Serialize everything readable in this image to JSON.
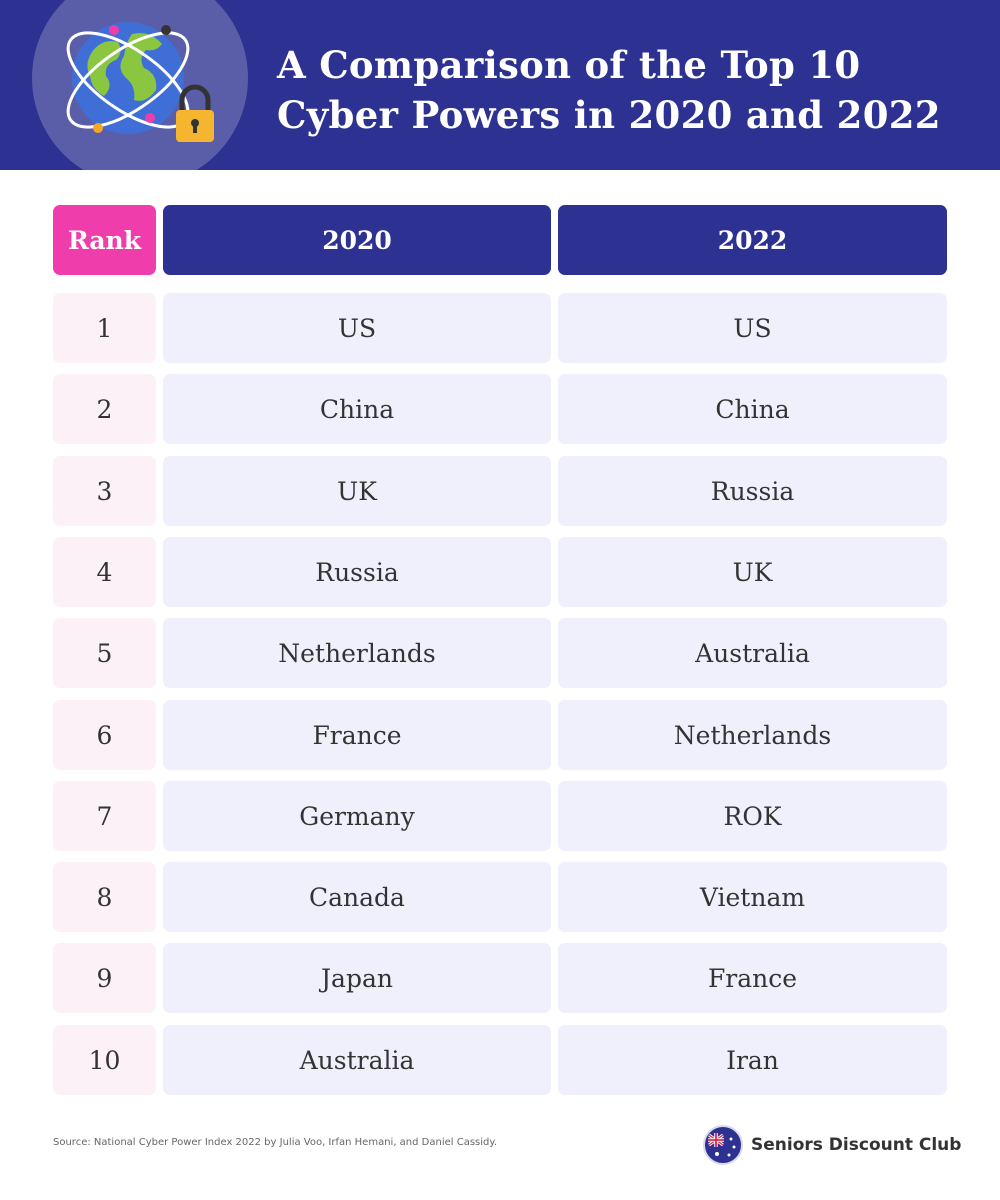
{
  "header": {
    "title_line1": "A Comparison of the Top 10",
    "title_line2": "Cyber Powers in 2020 and 2022",
    "icon": "globe-lock-icon",
    "background_color": "#2d3192"
  },
  "table": {
    "columns": {
      "rank": "Rank",
      "col_a": "2020",
      "col_b": "2022"
    },
    "rows": [
      {
        "rank": "1",
        "a": "US",
        "b": "US"
      },
      {
        "rank": "2",
        "a": "China",
        "b": "China"
      },
      {
        "rank": "3",
        "a": "UK",
        "b": "Russia"
      },
      {
        "rank": "4",
        "a": "Russia",
        "b": "UK"
      },
      {
        "rank": "5",
        "a": "Netherlands",
        "b": "Australia"
      },
      {
        "rank": "6",
        "a": "France",
        "b": "Netherlands"
      },
      {
        "rank": "7",
        "a": "Germany",
        "b": "ROK"
      },
      {
        "rank": "8",
        "a": "Canada",
        "b": "Vietnam"
      },
      {
        "rank": "9",
        "a": "Japan",
        "b": "France"
      },
      {
        "rank": "10",
        "a": "Australia",
        "b": "Iran"
      }
    ],
    "colors": {
      "rank_header": "#f03dac",
      "year_header": "#2d3192",
      "rank_cell": "#fdf1f8",
      "value_cell": "#f0f0fc"
    }
  },
  "footer": {
    "source": "Source: National Cyber Power Index 2022 by Julia Voo, Irfan Hemani, and Daniel Cassidy.",
    "brand_name": "Seniors Discount Club",
    "brand_icon": "australia-flag-icon"
  }
}
